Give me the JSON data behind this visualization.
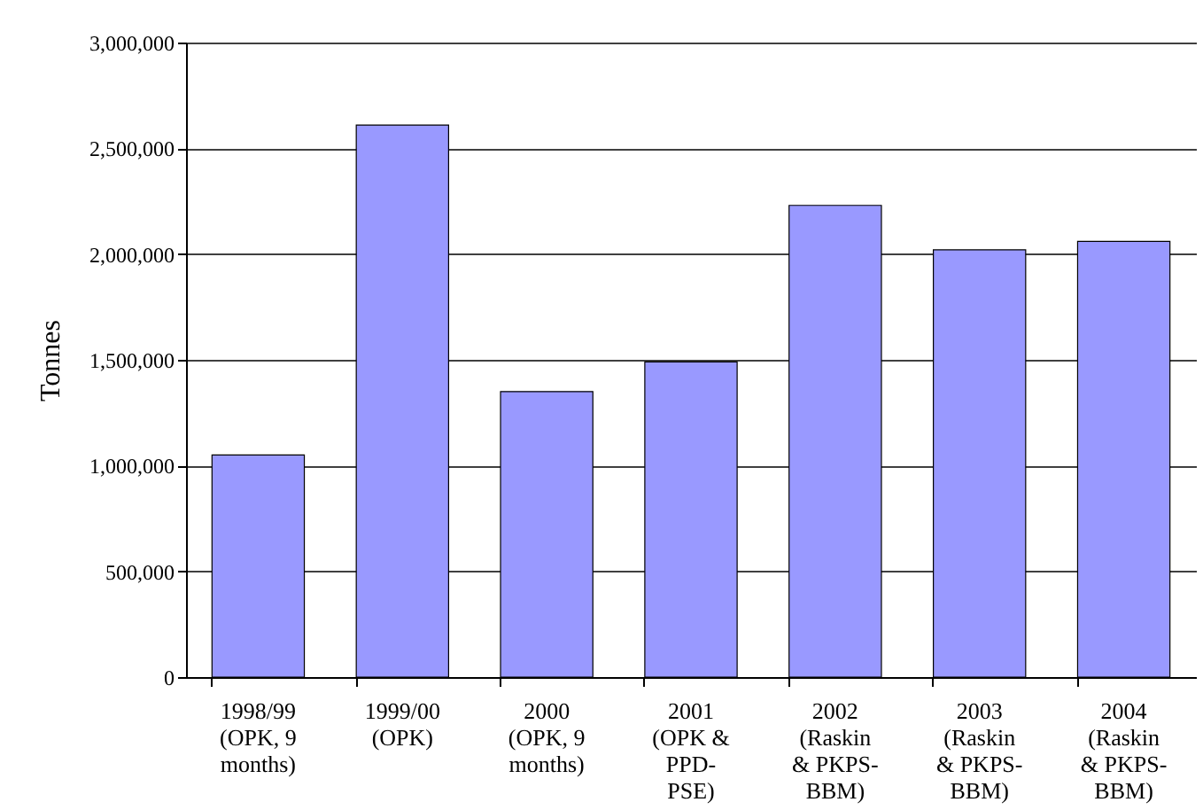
{
  "chart_data": {
    "type": "bar",
    "ylabel": "Tonnes",
    "categories": [
      "1998/99 (OPK, 9 months)",
      "1999/00 (OPK)",
      "2000 (OPK, 9 months)",
      "2001 (OPK & PPD-PSE)",
      "2002 (Raskin & PKPS-BBM)",
      "2003 (Raskin & PKPS-BBM)",
      "2004 (Raskin & PKPS-BBM)"
    ],
    "values": [
      1050000,
      2610000,
      1350000,
      1490000,
      2230000,
      2020000,
      2060000
    ],
    "color": "#9999ff",
    "ylim": [
      0,
      3000000
    ],
    "yticks": [
      0,
      {
        "value": 500000,
        "label": "500,000"
      },
      {
        "value": 1000000,
        "label": "1,000,000"
      },
      {
        "value": 1500000,
        "label": "1,500,000"
      },
      {
        "value": 2000000,
        "label": "2,000,000"
      },
      {
        "value": 2500000,
        "label": "2,500,000"
      },
      {
        "value": 3000000,
        "label": "3,000,000"
      }
    ],
    "grid": "y"
  }
}
